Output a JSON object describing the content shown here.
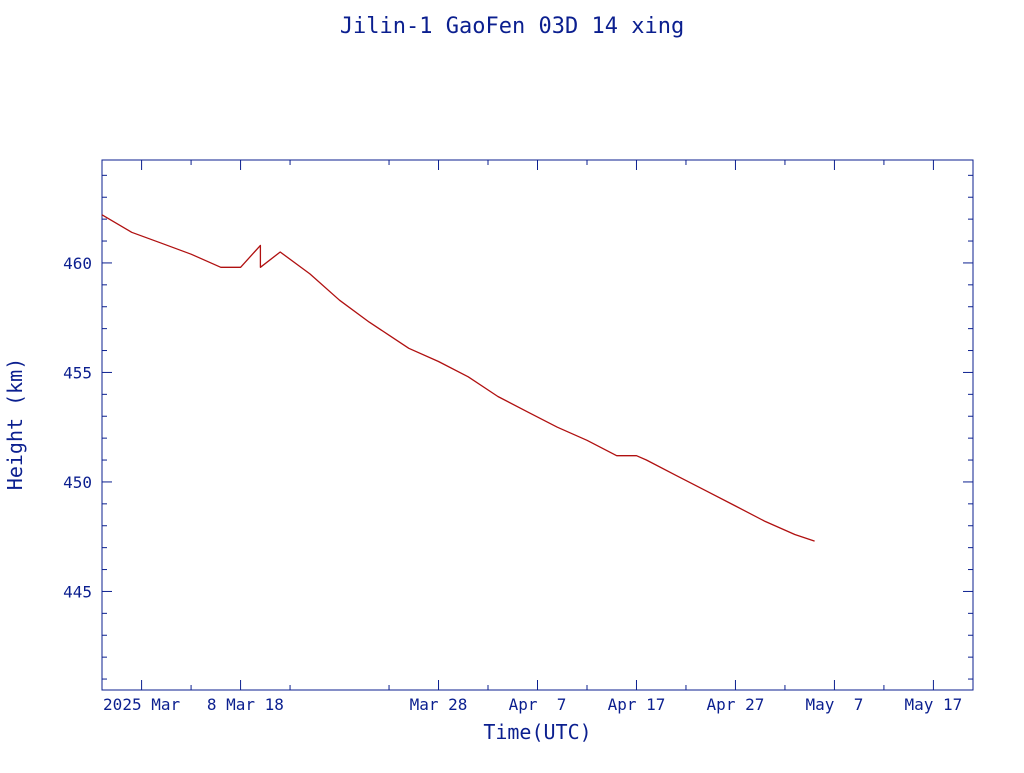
{
  "chart_data": {
    "type": "line",
    "title": "Jilin-1 GaoFen 03D 14 xing",
    "xlabel": "Time(UTC)",
    "ylabel": "Height (km)",
    "xlim": [
      "2025-02-22",
      "2025-05-21"
    ],
    "ylim": [
      440.5,
      464.7
    ],
    "yticks": [
      445,
      450,
      455,
      460
    ],
    "xticks": [
      {
        "date": "2025-02-26",
        "label": "2025 Mar"
      },
      {
        "date": "2025-03-08",
        "label": " 8 Mar 18"
      },
      {
        "date": "2025-03-28",
        "label": "Mar 28"
      },
      {
        "date": "2025-04-07",
        "label": "Apr  7"
      },
      {
        "date": "2025-04-17",
        "label": "Apr 17"
      },
      {
        "date": "2025-04-27",
        "label": "Apr 27"
      },
      {
        "date": "2025-05-07",
        "label": "May  7"
      },
      {
        "date": "2025-05-17",
        "label": "May 17"
      }
    ],
    "grid": false,
    "colors": {
      "axis": "#0b1f8f",
      "line": "#b01010"
    },
    "series": [
      {
        "x": [
          "2025-02-22",
          "2025-02-25",
          "2025-02-28",
          "2025-03-03",
          "2025-03-06",
          "2025-03-08",
          "2025-03-10",
          "2025-03-10",
          "2025-03-12",
          "2025-03-15",
          "2025-03-18",
          "2025-03-21",
          "2025-03-23",
          "2025-03-25",
          "2025-03-28",
          "2025-03-31",
          "2025-04-03",
          "2025-04-06",
          "2025-04-09",
          "2025-04-12",
          "2025-04-15",
          "2025-04-17",
          "2025-04-18",
          "2025-04-21",
          "2025-04-24",
          "2025-04-27",
          "2025-04-30",
          "2025-05-03",
          "2025-05-05"
        ],
        "y": [
          462.2,
          461.4,
          460.9,
          460.4,
          459.8,
          459.8,
          460.8,
          459.8,
          460.5,
          459.5,
          458.3,
          457.3,
          456.7,
          456.1,
          455.5,
          454.8,
          453.9,
          453.2,
          452.5,
          451.9,
          451.2,
          451.2,
          451.0,
          450.3,
          449.6,
          448.9,
          448.2,
          447.6,
          447.3
        ]
      }
    ]
  }
}
